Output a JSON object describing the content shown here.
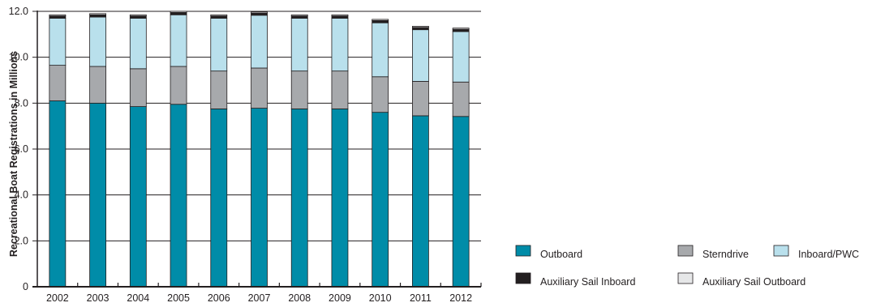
{
  "chart_data": {
    "type": "bar",
    "stacked": true,
    "ylabel": "Recreational Boat Registrations in Millions",
    "ylim": [
      0,
      12
    ],
    "y_ticks": [
      0,
      2.0,
      4.0,
      6.0,
      8.0,
      10.0,
      12.0
    ],
    "y_tick_labels": [
      "0",
      "2.0",
      "4.0",
      "6.0",
      "8.0",
      "10.0",
      "12.0"
    ],
    "grid": true,
    "categories": [
      "2002",
      "2003",
      "2004",
      "2005",
      "2006",
      "2007",
      "2008",
      "2009",
      "2010",
      "2011",
      "2012"
    ],
    "series": [
      {
        "name": "Outboard",
        "color": "#008ca8",
        "values": [
          8.1,
          8.0,
          7.85,
          7.95,
          7.75,
          7.78,
          7.75,
          7.75,
          7.6,
          7.45,
          7.42
        ]
      },
      {
        "name": "Sterndrive",
        "color": "#a7a9ac",
        "values": [
          1.55,
          1.6,
          1.65,
          1.65,
          1.65,
          1.75,
          1.65,
          1.65,
          1.55,
          1.5,
          1.5
        ]
      },
      {
        "name": "Inboard/PWC",
        "color": "#b9e0ec",
        "values": [
          2.05,
          2.15,
          2.2,
          2.25,
          2.3,
          2.3,
          2.3,
          2.3,
          2.35,
          2.25,
          2.2
        ]
      },
      {
        "name": "Auxiliary Sail Inboard",
        "color": "#231f20",
        "values": [
          0.1,
          0.1,
          0.1,
          0.1,
          0.1,
          0.1,
          0.1,
          0.1,
          0.1,
          0.1,
          0.1
        ]
      },
      {
        "name": "Auxiliary Sail Outboard",
        "color": "#e6e7e8",
        "values": [
          0.05,
          0.05,
          0.05,
          0.05,
          0.05,
          0.05,
          0.05,
          0.05,
          0.05,
          0.05,
          0.05
        ]
      }
    ],
    "legend": {
      "placement": "bottom-right",
      "items": [
        "Outboard",
        "Sterndrive",
        "Inboard/PWC",
        "Auxiliary Sail Inboard",
        "Auxiliary Sail Outboard"
      ]
    }
  }
}
